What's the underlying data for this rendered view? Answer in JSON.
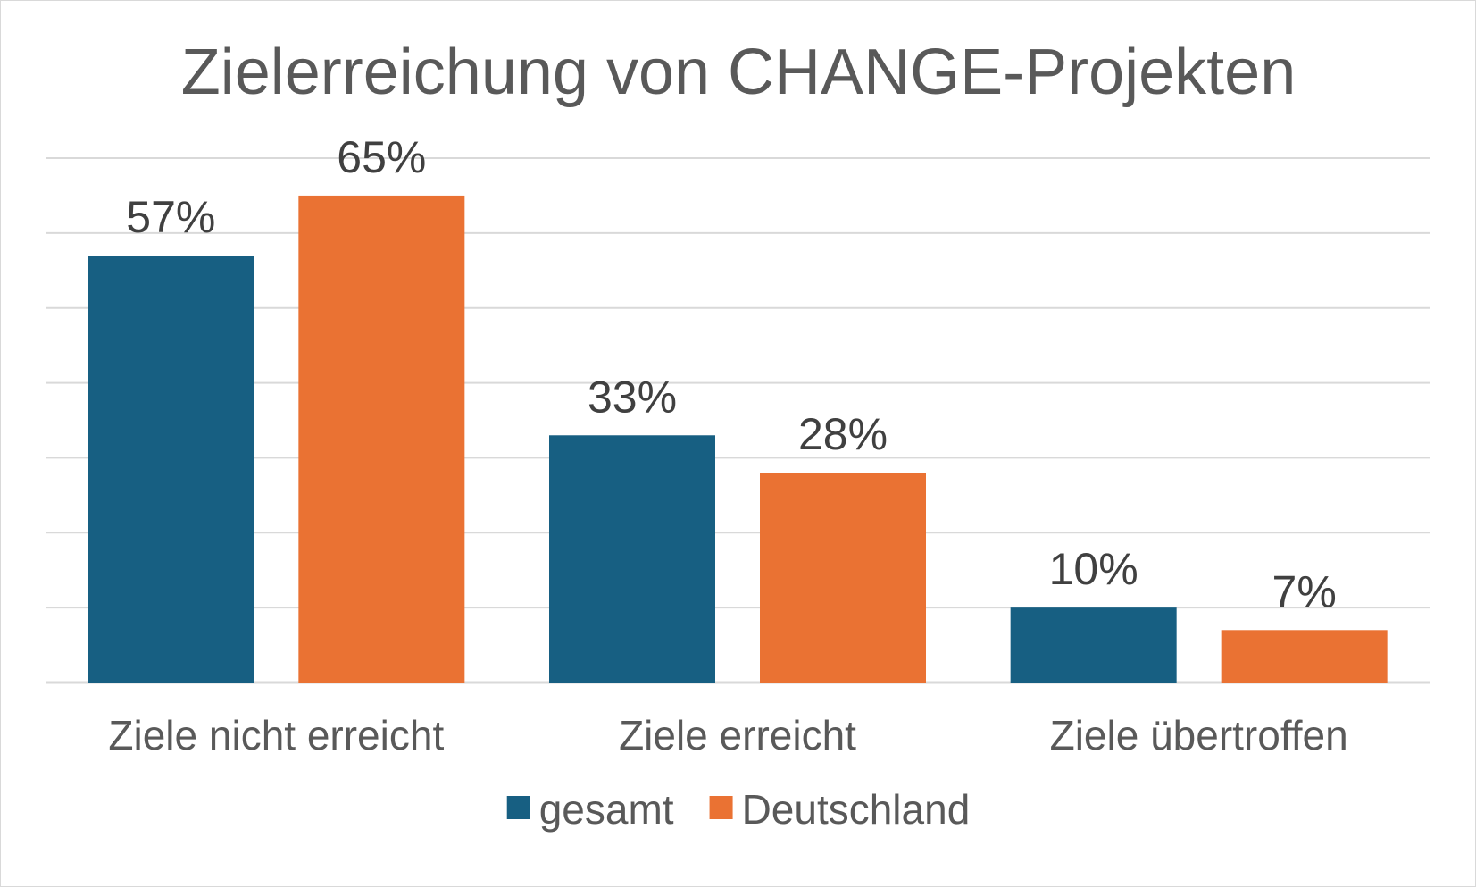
{
  "chart_data": {
    "type": "bar",
    "title": "Zielerreichung von CHANGE-Projekten",
    "categories": [
      "Ziele nicht erreicht",
      "Ziele erreicht",
      "Ziele übertroffen"
    ],
    "series": [
      {
        "name": "gesamt",
        "color": "#175f82",
        "values": [
          57,
          33,
          10
        ],
        "labels": [
          "57%",
          "33%",
          "10%"
        ]
      },
      {
        "name": "Deutschland",
        "color": "#ea7233",
        "values": [
          65,
          28,
          7
        ],
        "labels": [
          "65%",
          "28%",
          "7%"
        ]
      }
    ],
    "ylim": [
      0,
      70
    ],
    "grid": true,
    "legend_position": "bottom",
    "xlabel": "",
    "ylabel": ""
  }
}
